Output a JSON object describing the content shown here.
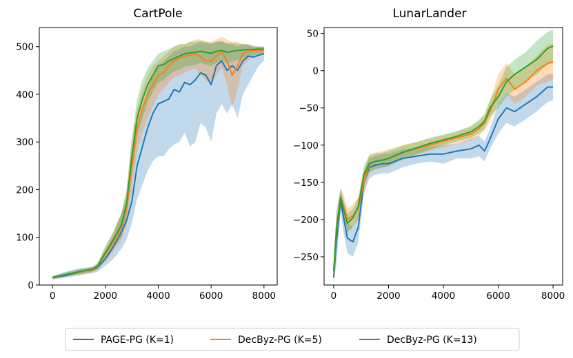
{
  "chart_data": [
    {
      "type": "line",
      "title": "CartPole",
      "xlabel": "",
      "ylabel": "",
      "xlim": [
        -500,
        8500
      ],
      "ylim": [
        0,
        540
      ],
      "x_ticks": [
        0,
        2000,
        4000,
        6000,
        8000
      ],
      "x_tick_labels": [
        "0",
        "2000",
        "4000",
        "6000",
        "8000"
      ],
      "y_ticks": [
        0,
        100,
        200,
        300,
        400,
        500
      ],
      "y_tick_labels": [
        "0",
        "100",
        "200",
        "300",
        "400",
        "500"
      ],
      "grid": false,
      "series": [
        {
          "name": "PAGE-PG (K=1)",
          "color": "#1f77b4",
          "x": [
            0,
            500,
            1000,
            1500,
            1700,
            2000,
            2300,
            2600,
            2800,
            3000,
            3200,
            3400,
            3600,
            3800,
            4000,
            4200,
            4400,
            4600,
            4800,
            5000,
            5200,
            5400,
            5600,
            5800,
            6000,
            6200,
            6400,
            6600,
            6800,
            7000,
            7200,
            7400,
            7600,
            7800,
            8000
          ],
          "y": [
            15,
            20,
            27,
            32,
            36,
            55,
            80,
            110,
            135,
            175,
            250,
            290,
            330,
            360,
            380,
            385,
            390,
            410,
            405,
            425,
            420,
            430,
            445,
            440,
            420,
            460,
            470,
            450,
            460,
            450,
            470,
            480,
            478,
            482,
            485
          ],
          "lower": [
            12,
            15,
            20,
            25,
            28,
            40,
            55,
            75,
            95,
            130,
            180,
            210,
            240,
            260,
            270,
            270,
            285,
            295,
            300,
            320,
            290,
            300,
            340,
            330,
            300,
            360,
            380,
            360,
            380,
            350,
            400,
            420,
            440,
            460,
            470
          ],
          "upper": [
            18,
            28,
            35,
            38,
            42,
            70,
            105,
            150,
            180,
            240,
            330,
            370,
            410,
            440,
            460,
            470,
            480,
            490,
            495,
            500,
            500,
            505,
            510,
            508,
            505,
            510,
            512,
            505,
            505,
            500,
            505,
            505,
            500,
            500,
            500
          ]
        },
        {
          "name": "DecByz-PG (K=5)",
          "color": "#ff7f0e",
          "x": [
            0,
            500,
            1000,
            1500,
            1700,
            2000,
            2300,
            2600,
            2800,
            3000,
            3200,
            3400,
            3600,
            3800,
            4000,
            4200,
            4400,
            4600,
            4800,
            5000,
            5200,
            5400,
            5600,
            5800,
            6000,
            6200,
            6400,
            6600,
            6800,
            7000,
            7200,
            7400,
            7600,
            7800,
            8000
          ],
          "y": [
            15,
            22,
            27,
            32,
            38,
            65,
            90,
            120,
            160,
            250,
            330,
            370,
            400,
            420,
            440,
            445,
            460,
            470,
            475,
            480,
            482,
            485,
            478,
            470,
            470,
            480,
            490,
            470,
            440,
            460,
            485,
            490,
            492,
            492,
            493
          ],
          "lower": [
            12,
            18,
            22,
            26,
            32,
            50,
            70,
            95,
            125,
            200,
            280,
            320,
            350,
            375,
            400,
            410,
            425,
            435,
            440,
            445,
            450,
            455,
            440,
            430,
            420,
            440,
            455,
            420,
            370,
            410,
            460,
            470,
            480,
            482,
            485
          ],
          "upper": [
            18,
            26,
            32,
            38,
            44,
            80,
            110,
            150,
            200,
            300,
            370,
            410,
            440,
            460,
            470,
            480,
            490,
            500,
            505,
            505,
            510,
            515,
            515,
            510,
            510,
            515,
            520,
            515,
            510,
            510,
            505,
            505,
            503,
            500,
            500
          ]
        },
        {
          "name": "DecByz-PG (K=13)",
          "color": "#2ca02c",
          "x": [
            0,
            500,
            1000,
            1500,
            1700,
            2000,
            2300,
            2600,
            2800,
            3000,
            3200,
            3400,
            3600,
            3800,
            4000,
            4200,
            4400,
            4600,
            4800,
            5000,
            5200,
            5400,
            5600,
            5800,
            6000,
            6200,
            6400,
            6600,
            6800,
            7000,
            7200,
            7400,
            7600,
            7800,
            8000
          ],
          "y": [
            16,
            22,
            28,
            33,
            40,
            68,
            95,
            125,
            170,
            270,
            350,
            390,
            420,
            440,
            460,
            462,
            470,
            475,
            480,
            485,
            487,
            488,
            490,
            488,
            486,
            490,
            492,
            488,
            490,
            492,
            493,
            494,
            494,
            495,
            495
          ],
          "lower": [
            13,
            18,
            23,
            28,
            34,
            55,
            78,
            100,
            140,
            230,
            310,
            350,
            385,
            405,
            425,
            430,
            440,
            448,
            452,
            458,
            460,
            462,
            466,
            462,
            460,
            466,
            470,
            465,
            468,
            472,
            476,
            480,
            482,
            485,
            486
          ],
          "upper": [
            19,
            26,
            33,
            38,
            46,
            82,
            112,
            150,
            200,
            310,
            390,
            430,
            455,
            470,
            485,
            490,
            495,
            500,
            505,
            505,
            510,
            510,
            512,
            510,
            508,
            510,
            510,
            508,
            508,
            506,
            505,
            503,
            500,
            500,
            500
          ]
        }
      ]
    },
    {
      "type": "line",
      "title": "LunarLander",
      "xlabel": "",
      "ylabel": "",
      "xlim": [
        -350,
        8350
      ],
      "ylim": [
        -288,
        58
      ],
      "x_ticks": [
        0,
        2000,
        4000,
        6000,
        8000
      ],
      "x_tick_labels": [
        "0",
        "2000",
        "4000",
        "6000",
        "8000"
      ],
      "y_ticks": [
        -250,
        -200,
        -150,
        -100,
        -50,
        0,
        50
      ],
      "y_tick_labels": [
        "−250",
        "−200",
        "−150",
        "−100",
        "−50",
        "0",
        "50"
      ],
      "grid": false,
      "series": [
        {
          "name": "PAGE-PG (K=1)",
          "color": "#1f77b4",
          "x": [
            0,
            100,
            250,
            350,
            500,
            700,
            900,
            1100,
            1300,
            1500,
            1800,
            2000,
            2500,
            3000,
            3500,
            4000,
            4500,
            5000,
            5300,
            5500,
            5700,
            6000,
            6300,
            6600,
            7000,
            7400,
            7800,
            8000
          ],
          "y": [
            -278,
            -230,
            -175,
            -195,
            -225,
            -230,
            -210,
            -150,
            -130,
            -127,
            -125,
            -125,
            -118,
            -115,
            -112,
            -112,
            -108,
            -105,
            -100,
            -108,
            -92,
            -65,
            -50,
            -55,
            -45,
            -35,
            -22,
            -22
          ],
          "lower": [
            -285,
            -260,
            -190,
            -215,
            -245,
            -250,
            -230,
            -165,
            -145,
            -140,
            -138,
            -138,
            -130,
            -125,
            -122,
            -125,
            -118,
            -118,
            -115,
            -122,
            -105,
            -85,
            -70,
            -75,
            -65,
            -55,
            -42,
            -40
          ],
          "upper": [
            -270,
            -205,
            -160,
            -175,
            -205,
            -210,
            -190,
            -135,
            -118,
            -115,
            -112,
            -112,
            -106,
            -104,
            -102,
            -100,
            -98,
            -92,
            -88,
            -95,
            -78,
            -45,
            -30,
            -35,
            -25,
            -15,
            -5,
            -4
          ]
        },
        {
          "name": "DecByz-PG (K=5)",
          "color": "#ff7f0e",
          "x": [
            0,
            100,
            250,
            350,
            500,
            700,
            900,
            1100,
            1300,
            1500,
            1800,
            2000,
            2500,
            3000,
            3500,
            4000,
            4500,
            5000,
            5300,
            5500,
            5700,
            6000,
            6300,
            6600,
            7000,
            7400,
            7800,
            8000
          ],
          "y": [
            -272,
            -215,
            -172,
            -180,
            -200,
            -195,
            -185,
            -150,
            -125,
            -122,
            -120,
            -118,
            -110,
            -105,
            -100,
            -95,
            -90,
            -85,
            -78,
            -70,
            -55,
            -25,
            -10,
            -25,
            -15,
            0,
            10,
            12
          ],
          "lower": [
            -280,
            -240,
            -185,
            -195,
            -215,
            -210,
            -200,
            -165,
            -138,
            -133,
            -130,
            -128,
            -120,
            -114,
            -108,
            -103,
            -98,
            -94,
            -88,
            -80,
            -68,
            -45,
            -30,
            -45,
            -35,
            -20,
            -15,
            -12
          ],
          "upper": [
            -264,
            -190,
            -158,
            -165,
            -185,
            -180,
            -170,
            -135,
            -112,
            -110,
            -108,
            -106,
            -100,
            -96,
            -92,
            -87,
            -82,
            -76,
            -68,
            -60,
            -42,
            -5,
            10,
            -5,
            5,
            20,
            35,
            36
          ]
        },
        {
          "name": "DecByz-PG (K=13)",
          "color": "#2ca02c",
          "x": [
            0,
            100,
            250,
            350,
            500,
            700,
            900,
            1100,
            1300,
            1500,
            1800,
            2000,
            2500,
            3000,
            3500,
            4000,
            4500,
            5000,
            5300,
            5500,
            5700,
            6000,
            6300,
            6600,
            7000,
            7400,
            7800,
            8000
          ],
          "y": [
            -270,
            -212,
            -170,
            -185,
            -205,
            -198,
            -182,
            -140,
            -125,
            -122,
            -120,
            -118,
            -110,
            -104,
            -98,
            -93,
            -88,
            -82,
            -75,
            -68,
            -50,
            -35,
            -15,
            -5,
            5,
            15,
            30,
            33
          ],
          "lower": [
            -278,
            -235,
            -182,
            -198,
            -218,
            -210,
            -195,
            -152,
            -136,
            -132,
            -130,
            -128,
            -119,
            -112,
            -106,
            -100,
            -95,
            -90,
            -84,
            -78,
            -62,
            -50,
            -35,
            -25,
            -15,
            -5,
            8,
            10
          ],
          "upper": [
            -262,
            -190,
            -158,
            -172,
            -192,
            -186,
            -170,
            -128,
            -114,
            -112,
            -110,
            -108,
            -101,
            -96,
            -90,
            -86,
            -81,
            -74,
            -66,
            -58,
            -38,
            -20,
            5,
            15,
            25,
            40,
            52,
            55
          ]
        }
      ]
    }
  ],
  "legend": {
    "placement": "bottom-center",
    "entries": [
      {
        "label": "PAGE-PG (K=1)",
        "color": "#1f77b4"
      },
      {
        "label": "DecByz-PG (K=5)",
        "color": "#ff7f0e"
      },
      {
        "label": "DecByz-PG (K=13)",
        "color": "#2ca02c"
      }
    ]
  }
}
